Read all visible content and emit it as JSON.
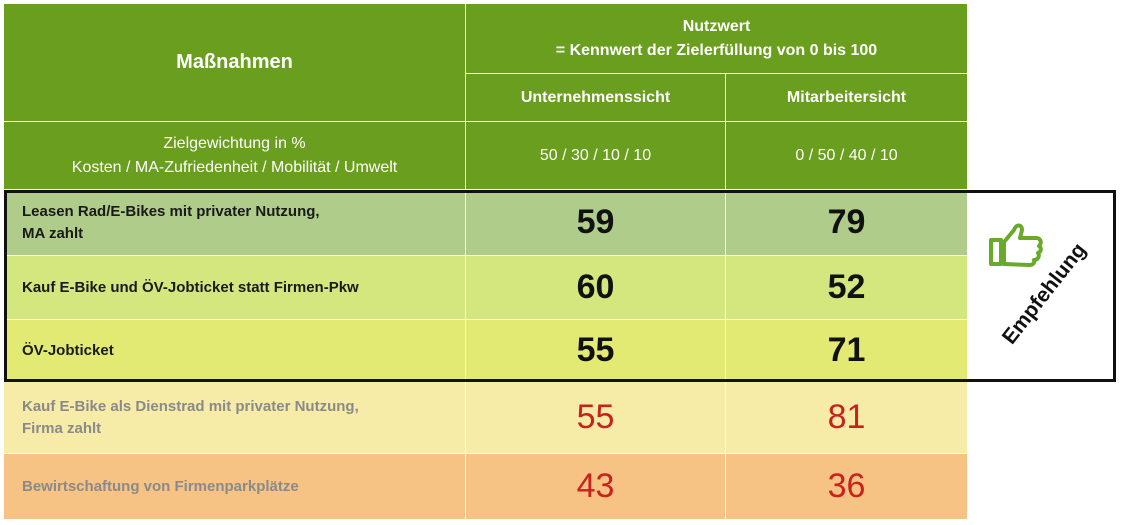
{
  "header": {
    "measures": "Maßnahmen",
    "nutzwert_line1": "Nutzwert",
    "nutzwert_line2": "= Kennwert der Zielerfüllung von 0 bis 100",
    "col_company": "Unternehmenssicht",
    "col_employee": "Mitarbeitersicht",
    "weighting_line1": "Zielgewichtung in %",
    "weighting_line2": "Kosten / MA-Zufriedenheit / Mobilität / Umwelt",
    "weighting_company": "50 / 30 / 10 / 10",
    "weighting_employee": "0 / 50 / 40 / 10"
  },
  "rows": [
    {
      "measure_line1": "Leasen Rad/E-Bikes mit privater Nutzung,",
      "measure_line2": "MA zahlt",
      "company": "59",
      "employee": "79"
    },
    {
      "measure_line1": "Kauf E-Bike und ÖV-Jobticket statt Firmen-Pkw",
      "measure_line2": "",
      "company": "60",
      "employee": "52"
    },
    {
      "measure_line1": "ÖV-Jobticket",
      "measure_line2": "",
      "company": "55",
      "employee": "71"
    },
    {
      "measure_line1": "Kauf E-Bike als Dienstrad mit privater Nutzung,",
      "measure_line2": "Firma zahlt",
      "company": "55",
      "employee": "81"
    },
    {
      "measure_line1": "Bewirtschaftung von Firmenparkplätze",
      "measure_line2": "",
      "company": "43",
      "employee": "36"
    }
  ],
  "recommendation": {
    "label": "Empfehlung",
    "icon": "thumbs-up-icon",
    "icon_color": "#6aaa2a"
  },
  "colors": {
    "header_green": "#6a9e1f",
    "value_red": "#c8221e"
  }
}
